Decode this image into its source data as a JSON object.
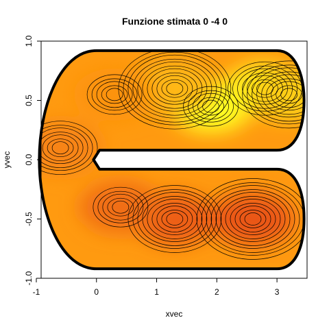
{
  "chart_data": {
    "type": "contour",
    "title": "Funzione stimata 0 -4 0",
    "xlabel": "xvec",
    "ylabel": "yvec",
    "xlim": [
      -0.92,
      3.5
    ],
    "ylim": [
      -1.0,
      1.0
    ],
    "x_ticks": [
      "-1",
      "0",
      "1",
      "2",
      "3"
    ],
    "y_ticks": [
      "-1.0",
      "-0.5",
      "0.0",
      "0.5",
      "1.0"
    ],
    "x_tick_values": [
      -1,
      0,
      1,
      2,
      3
    ],
    "y_tick_values": [
      -1.0,
      -0.5,
      0.0,
      0.5,
      1.0
    ],
    "domain_shape": "C-shaped horseshoe",
    "colors": {
      "boundary": "#000000",
      "low": "#e8501a",
      "mid": "#ff9a10",
      "high": "#ffff20"
    },
    "hotspots": [
      {
        "x": 1.9,
        "y": 0.45,
        "value": 1.0
      },
      {
        "x": 2.8,
        "y": 0.6,
        "value": 0.9
      },
      {
        "x": 3.2,
        "y": 0.55,
        "value": 0.75
      },
      {
        "x": 1.3,
        "y": 0.6,
        "value": 0.65
      },
      {
        "x": 0.3,
        "y": 0.55,
        "value": 0.45
      },
      {
        "x": -0.6,
        "y": 0.1,
        "value": 0.35
      },
      {
        "x": 1.3,
        "y": -0.5,
        "value": 0.1
      },
      {
        "x": 2.6,
        "y": -0.5,
        "value": 0.05
      },
      {
        "x": 0.4,
        "y": -0.4,
        "value": 0.2
      }
    ]
  }
}
